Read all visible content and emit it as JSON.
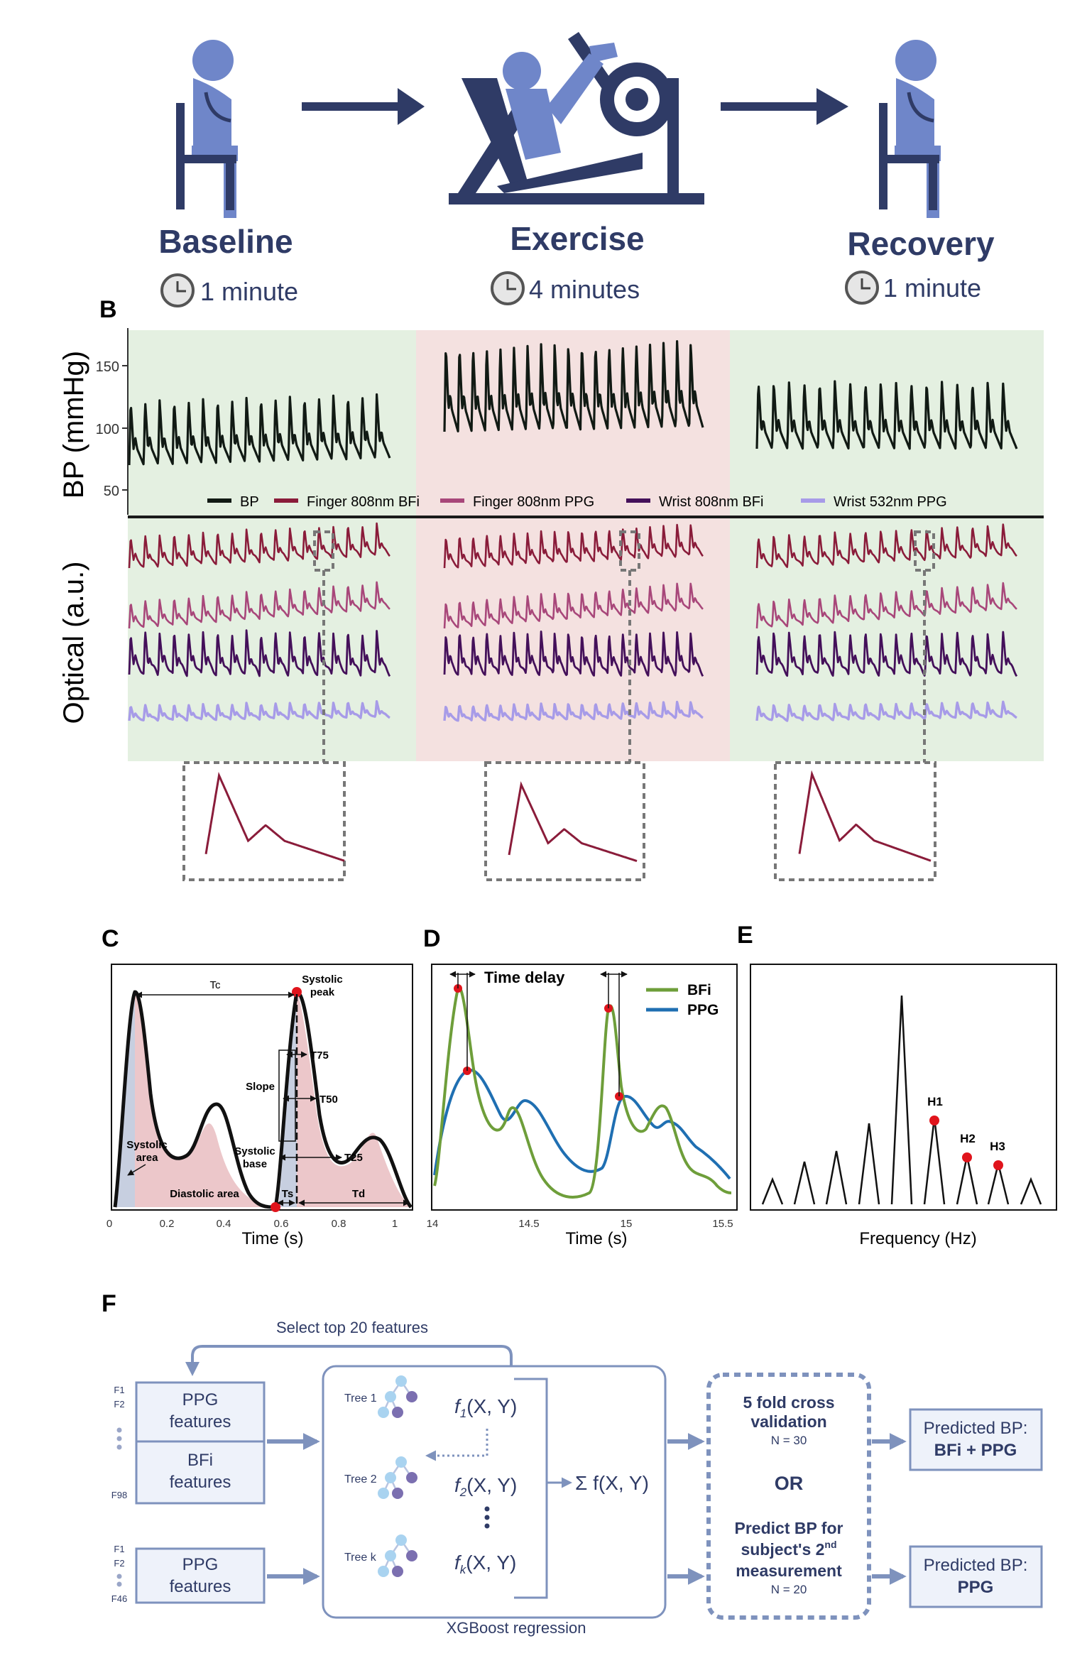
{
  "panel_a": {
    "phases": [
      {
        "name": "Baseline",
        "duration": "1 minute"
      },
      {
        "name": "Exercise",
        "duration": "4 minutes"
      },
      {
        "name": "Recovery",
        "duration": "1 minute"
      }
    ]
  },
  "panel_b": {
    "label": "B",
    "ylabel_top": "BP (mmHg)",
    "ylabel_bottom": "Optical (a.u.)",
    "bp_ticks": [
      "150",
      "100",
      "50"
    ],
    "legend": [
      "BP",
      "Finger 808nm BFi",
      "Finger 808nm PPG",
      "Wrist 808nm BFi",
      "Wrist 532nm PPG"
    ],
    "colors": {
      "bp": "#111a14",
      "finger_bfi": "#8a1c3a",
      "finger_ppg": "#a8477a",
      "wrist_bfi": "#44105a",
      "wrist_ppg": "#a79be8",
      "green_bg": "#e4f0e1",
      "red_bg": "#f4e1e0"
    }
  },
  "panel_c": {
    "label": "C",
    "xlabel": "Time (s)",
    "xticks": [
      "0",
      "0.2",
      "0.4",
      "0.6",
      "0.8",
      "1"
    ],
    "labels": {
      "tc": "Tc",
      "systolic_peak_1": "Systolic",
      "systolic_peak_2": "peak",
      "t75": "T75",
      "t50": "T50",
      "t25": "T25",
      "slope": "Slope",
      "systolic_area_1": "Systolic",
      "systolic_area_2": "area",
      "systolic_base_1": "Systolic",
      "systolic_base_2": "base",
      "diastolic_area": "Diastolic area",
      "ts": "Ts",
      "td": "Td"
    }
  },
  "panel_d": {
    "label": "D",
    "xlabel": "Time (s)",
    "xticks": [
      "14",
      "14.5",
      "15",
      "15.5"
    ],
    "annotation": "Time delay",
    "legend": [
      {
        "name": "BFi",
        "color": "#6e9e3a"
      },
      {
        "name": "PPG",
        "color": "#1f6fb2"
      }
    ]
  },
  "panel_e": {
    "label": "E",
    "xlabel": "Frequency (Hz)",
    "harmonics": [
      "H1",
      "H2",
      "H3"
    ]
  },
  "panel_f": {
    "label": "F",
    "feedback": "Select top 20 features",
    "inputs_top": {
      "f_first_1": "F1",
      "f_first_2": "F2",
      "f_last": "F98",
      "ppg_1": "PPG",
      "ppg_2": "features",
      "bfi_1": "BFi",
      "bfi_2": "features"
    },
    "inputs_bottom": {
      "f_first_1": "F1",
      "f_first_2": "F2",
      "f_last": "F46",
      "ppg_1": "PPG",
      "ppg_2": "features"
    },
    "trees": [
      "Tree 1",
      "Tree 2",
      "Tree k"
    ],
    "tree_funcs": [
      {
        "f": "f",
        "sub": "1",
        "args": "(X, Y)"
      },
      {
        "f": "f",
        "sub": "2",
        "args": "(X, Y)"
      },
      {
        "f": "f",
        "sub": "k",
        "args": "(X, Y)"
      }
    ],
    "sum": "Σ f(X, Y)",
    "model_label": "XGBoost regression",
    "validation": {
      "cv_1": "5 fold cross",
      "cv_2": "validation",
      "cv_n": "N = 30",
      "or": "OR",
      "pred_1": "Predict BP for",
      "pred_2a": "subject's 2",
      "pred_2sup": "nd",
      "pred_3": "measurement",
      "pred_n": "N = 20"
    },
    "outputs": [
      {
        "line1": "Predicted BP:",
        "line2": "BFi + PPG"
      },
      {
        "line1": "Predicted BP:",
        "line2": "PPG"
      }
    ]
  }
}
